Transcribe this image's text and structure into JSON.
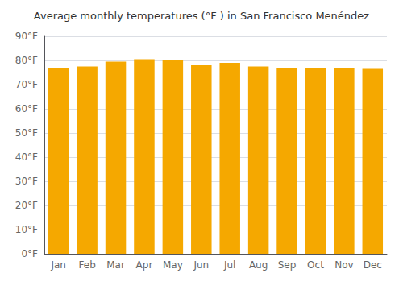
{
  "chart_data": {
    "type": "bar",
    "title": "Average monthly temperatures (°F ) in San Francisco Menéndez",
    "categories": [
      "Jan",
      "Feb",
      "Mar",
      "Apr",
      "May",
      "Jun",
      "Jul",
      "Aug",
      "Sep",
      "Oct",
      "Nov",
      "Dec"
    ],
    "values": [
      77,
      77.5,
      79.5,
      80.5,
      80,
      78,
      79,
      77.5,
      77,
      77,
      77,
      76.5
    ],
    "color": "#F5A800",
    "ylim": [
      0,
      90
    ],
    "yticks": [
      {
        "value": 0,
        "label": "0°F"
      },
      {
        "value": 10,
        "label": "10°F"
      },
      {
        "value": 20,
        "label": "20°F"
      },
      {
        "value": 30,
        "label": "30°F"
      },
      {
        "value": 40,
        "label": "40°F"
      },
      {
        "value": 50,
        "label": "50°F"
      },
      {
        "value": 60,
        "label": "60°F"
      },
      {
        "value": 70,
        "label": "70°F"
      },
      {
        "value": 80,
        "label": "80°F"
      },
      {
        "value": 90,
        "label": "90°F"
      }
    ],
    "grid": true
  }
}
